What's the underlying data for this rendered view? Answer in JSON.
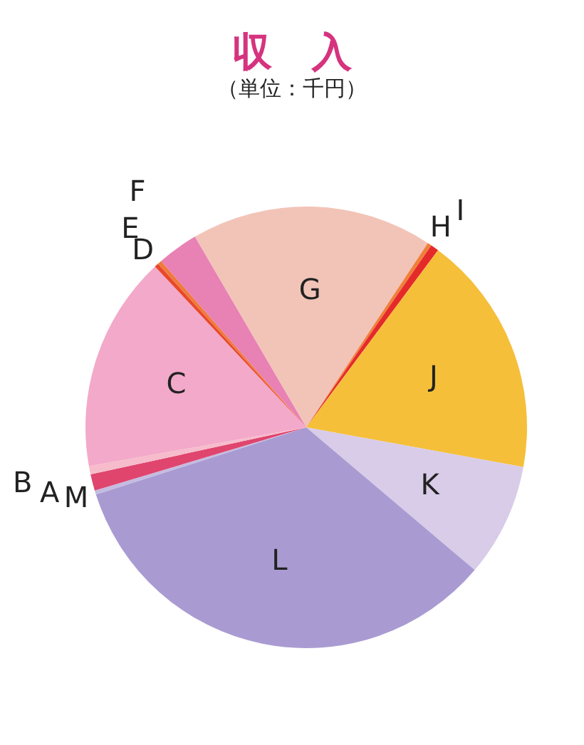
{
  "chart_data": {
    "type": "pie",
    "title": "収　入",
    "subtitle": "（単位：千円）",
    "categories": [
      "G",
      "H",
      "I",
      "J",
      "K",
      "L",
      "M",
      "A",
      "B",
      "C",
      "D",
      "E",
      "F"
    ],
    "values": [
      17.7,
      0.3,
      0.6,
      17.7,
      8.3,
      33.9,
      0.3,
      1.2,
      0.6,
      15.8,
      0.3,
      0.3,
      3.0
    ],
    "colors": [
      "#f2c4b8",
      "#f0803a",
      "#e52a2a",
      "#f5bf3a",
      "#d8cce8",
      "#a99bd2",
      "#c4bce0",
      "#e0456e",
      "#f6bccb",
      "#f3a9c9",
      "#e8482a",
      "#f07a3a",
      "#e881b4"
    ]
  }
}
